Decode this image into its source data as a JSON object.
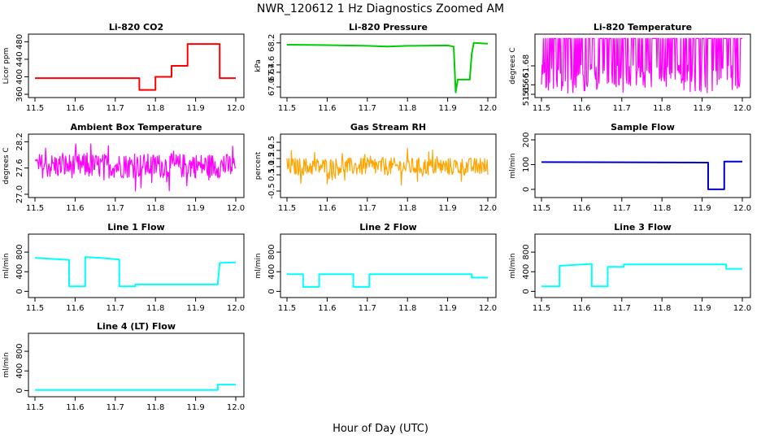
{
  "figure": {
    "title": "NWR_120612  1 Hz Diagnostics Zoomed AM",
    "xlabel": "Hour of Day (UTC)"
  },
  "chart_data": [
    {
      "type": "line",
      "title": "Li-820 CO2",
      "ylabel": "Licor ppm",
      "color": "#ff0000",
      "xlim": [
        11.5,
        12.0
      ],
      "xticks": [
        "11.5",
        "11.6",
        "11.7",
        "11.8",
        "11.9",
        "12.0"
      ],
      "ylim": [
        360,
        490
      ],
      "yticks": [
        "360",
        "400",
        "440",
        "480"
      ],
      "x": [
        11.5,
        11.76,
        11.76,
        11.8,
        11.8,
        11.84,
        11.84,
        11.88,
        11.88,
        11.96,
        11.96,
        12.0
      ],
      "y": [
        397,
        397,
        370,
        370,
        400,
        400,
        425,
        425,
        475,
        475,
        397,
        397
      ]
    },
    {
      "type": "line",
      "title": "Li-820 Pressure",
      "ylabel": "kPa",
      "color": "#00cc00",
      "xlim": [
        11.5,
        12.0
      ],
      "xticks": [
        "11.5",
        "11.6",
        "11.7",
        "11.8",
        "11.9",
        "12.0"
      ],
      "ylim": [
        66.8,
        68.35
      ],
      "yticks": [
        "67.0",
        "67.4",
        "67.6",
        "68.2"
      ],
      "x": [
        11.5,
        11.6,
        11.7,
        11.75,
        11.8,
        11.9,
        11.915,
        11.92,
        11.925,
        11.955,
        11.96,
        11.965,
        12.0
      ],
      "y": [
        68.15,
        68.14,
        68.12,
        68.1,
        68.12,
        68.13,
        68.1,
        66.85,
        67.2,
        67.2,
        67.9,
        68.2,
        68.18
      ]
    },
    {
      "type": "line",
      "title": "Li-820 Temperature",
      "ylabel": "degrees C",
      "color": "#ff00ff",
      "xlim": [
        11.5,
        12.0
      ],
      "xticks": [
        "11.5",
        "11.6",
        "11.7",
        "11.8",
        "11.9",
        "12.0"
      ],
      "ylim": [
        51.65,
        51.71
      ],
      "yticks": [
        "51.65",
        "51.66",
        "51.68"
      ],
      "noise": {
        "base": 51.69,
        "amp": 0.015,
        "mode": "toggle"
      }
    },
    {
      "type": "line",
      "title": "Ambient Box Temperature",
      "ylabel": "degrees C",
      "color": "#ff00ff",
      "xlim": [
        11.5,
        12.0
      ],
      "xticks": [
        "11.5",
        "11.6",
        "11.7",
        "11.8",
        "11.9",
        "12.0"
      ],
      "ylim": [
        27.0,
        28.3
      ],
      "yticks": [
        "27.0",
        "27.6",
        "28.2"
      ],
      "noise": {
        "base": 27.65,
        "amp": 0.28,
        "mode": "jitter"
      }
    },
    {
      "type": "line",
      "title": "Gas Stream RH",
      "ylabel": "percent",
      "color": "#ffa500",
      "xlim": [
        11.5,
        12.0
      ],
      "xticks": [
        "11.5",
        "11.6",
        "11.7",
        "11.8",
        "11.9",
        "12.0"
      ],
      "ylim": [
        -0.7,
        2.8
      ],
      "yticks": [
        "-0.5",
        "0.5",
        "1.0",
        "1.5",
        "2.0",
        "2.5"
      ],
      "noise": {
        "base": 1.0,
        "amp": 0.55,
        "mode": "jitter"
      }
    },
    {
      "type": "line",
      "title": "Sample Flow",
      "ylabel": "ml/min",
      "color": "#0000cc",
      "xlim": [
        11.5,
        12.0
      ],
      "xticks": [
        "11.5",
        "11.6",
        "11.7",
        "11.8",
        "11.9",
        "12.0"
      ],
      "ylim": [
        -20,
        210
      ],
      "yticks": [
        "0",
        "100",
        "200"
      ],
      "x": [
        11.5,
        11.915,
        11.915,
        11.955,
        11.955,
        12.0
      ],
      "y": [
        110,
        108,
        0,
        0,
        112,
        112
      ]
    },
    {
      "type": "line",
      "title": "Line 1 Flow",
      "ylabel": "ml/min",
      "color": "#00ffff",
      "xlim": [
        11.5,
        12.0
      ],
      "xticks": [
        "11.5",
        "11.6",
        "11.7",
        "11.8",
        "11.9",
        "12.0"
      ],
      "ylim": [
        -60,
        1100
      ],
      "yticks": [
        "0",
        "400",
        "800"
      ],
      "x": [
        11.5,
        11.55,
        11.585,
        11.585,
        11.625,
        11.625,
        11.665,
        11.71,
        11.71,
        11.75,
        11.75,
        11.955,
        11.96,
        12.0
      ],
      "y": [
        680,
        660,
        640,
        100,
        100,
        700,
        680,
        650,
        100,
        100,
        140,
        140,
        580,
        590
      ]
    },
    {
      "type": "line",
      "title": "Line 2 Flow",
      "ylabel": "ml/min",
      "color": "#00ffff",
      "xlim": [
        11.5,
        12.0
      ],
      "xticks": [
        "11.5",
        "11.6",
        "11.7",
        "11.8",
        "11.9",
        "12.0"
      ],
      "ylim": [
        -60,
        1100
      ],
      "yticks": [
        "0",
        "400",
        "800"
      ],
      "x": [
        11.5,
        11.54,
        11.54,
        11.58,
        11.58,
        11.665,
        11.665,
        11.705,
        11.705,
        11.96,
        11.96,
        12.0
      ],
      "y": [
        350,
        350,
        90,
        90,
        350,
        350,
        90,
        90,
        350,
        350,
        280,
        280
      ]
    },
    {
      "type": "line",
      "title": "Line 3 Flow",
      "ylabel": "ml/min",
      "color": "#00ffff",
      "xlim": [
        11.5,
        12.0
      ],
      "xticks": [
        "11.5",
        "11.6",
        "11.7",
        "11.8",
        "11.9",
        "12.0"
      ],
      "ylim": [
        -60,
        1100
      ],
      "yticks": [
        "0",
        "400",
        "800"
      ],
      "x": [
        11.5,
        11.545,
        11.545,
        11.585,
        11.625,
        11.625,
        11.665,
        11.665,
        11.705,
        11.705,
        11.96,
        11.96,
        12.0
      ],
      "y": [
        100,
        100,
        520,
        540,
        560,
        100,
        100,
        500,
        500,
        550,
        550,
        460,
        460
      ]
    },
    {
      "type": "line",
      "title": "Line 4 (LT) Flow",
      "ylabel": "ml/min",
      "color": "#00ffff",
      "xlim": [
        11.5,
        12.0
      ],
      "xticks": [
        "11.5",
        "11.6",
        "11.7",
        "11.8",
        "11.9",
        "12.0"
      ],
      "ylim": [
        -60,
        1100
      ],
      "yticks": [
        "0",
        "400",
        "800"
      ],
      "x": [
        11.5,
        11.955,
        11.955,
        12.0
      ],
      "y": [
        10,
        10,
        120,
        120
      ]
    }
  ]
}
